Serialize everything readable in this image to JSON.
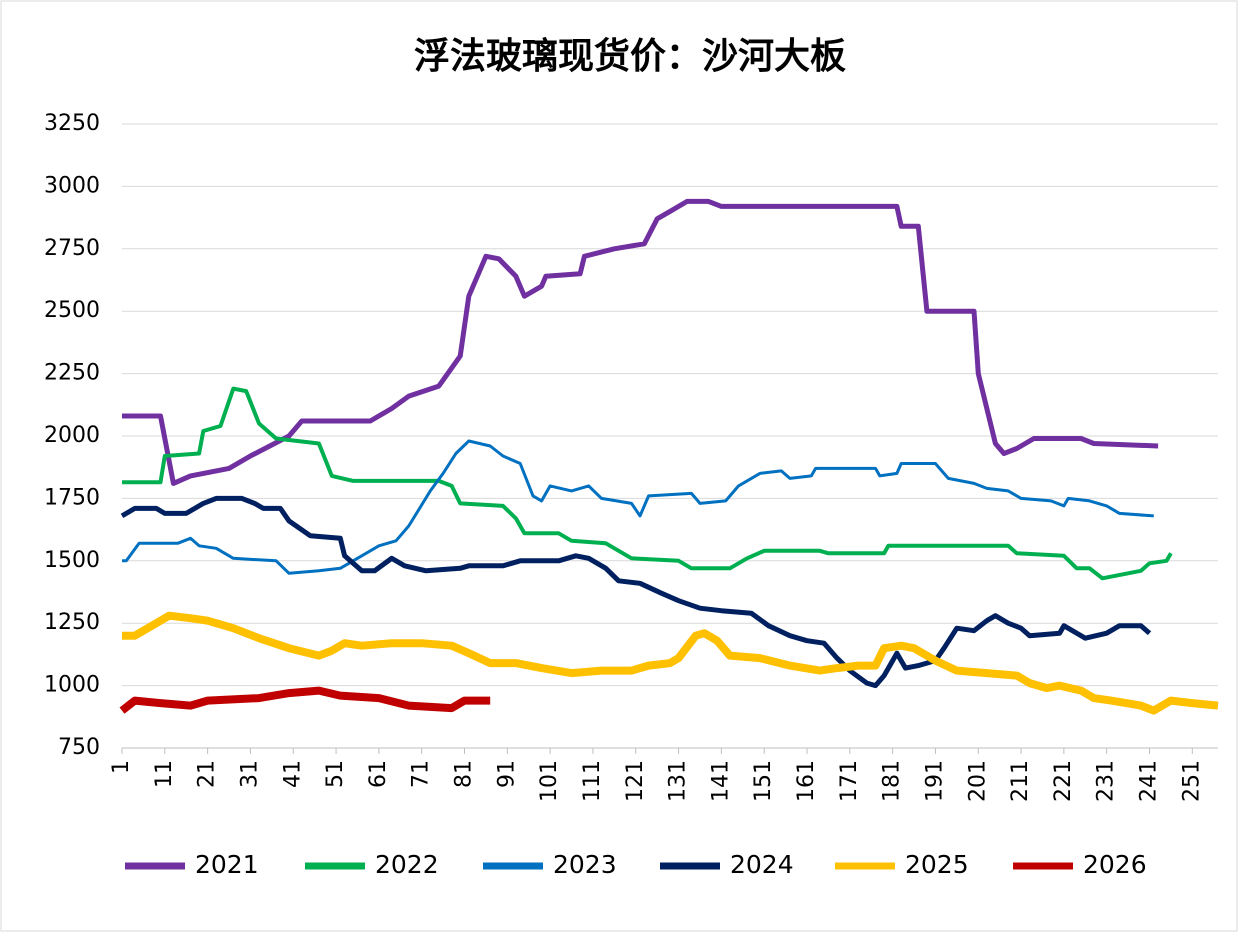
{
  "chart_data": {
    "type": "line",
    "title": "浮法玻璃现货价：沙河大板",
    "xlim": [
      1,
      257
    ],
    "xticks": [
      1,
      11,
      21,
      31,
      41,
      51,
      61,
      71,
      81,
      91,
      101,
      111,
      121,
      131,
      141,
      151,
      161,
      171,
      181,
      191,
      201,
      211,
      221,
      231,
      241,
      251
    ],
    "ylim": [
      750,
      3250
    ],
    "yticks": [
      750,
      1000,
      1250,
      1500,
      1750,
      2000,
      2250,
      2500,
      2750,
      3000,
      3250
    ],
    "grid": true,
    "legend": "bottom",
    "series": [
      {
        "name": "2021",
        "color": "#7030a0",
        "x": [
          1,
          10,
          13,
          17,
          26,
          31,
          40,
          43,
          59,
          64,
          68,
          75,
          80,
          82,
          86,
          89,
          93,
          95,
          99,
          100,
          108,
          109,
          116,
          123,
          126,
          129,
          133,
          138,
          141,
          182,
          183,
          187,
          189,
          200,
          201,
          205,
          207,
          210,
          214,
          225,
          228,
          243
        ],
        "values": [
          2080,
          2080,
          1810,
          1840,
          1870,
          1920,
          2000,
          2060,
          2060,
          2110,
          2160,
          2200,
          2320,
          2560,
          2720,
          2710,
          2640,
          2560,
          2600,
          2640,
          2650,
          2720,
          2750,
          2770,
          2870,
          2900,
          2940,
          2940,
          2920,
          2920,
          2840,
          2840,
          2500,
          2500,
          2250,
          1970,
          1930,
          1950,
          1990,
          1990,
          1970,
          1960
        ]
      },
      {
        "name": "2022",
        "color": "#00b050",
        "x": [
          1,
          10,
          11,
          19,
          20,
          24,
          27,
          30,
          33,
          37,
          47,
          50,
          55,
          75,
          78,
          80,
          90,
          93,
          95,
          103,
          106,
          114,
          120,
          131,
          134,
          143,
          147,
          151,
          164,
          166,
          179,
          180,
          208,
          210,
          221,
          224,
          227,
          230,
          233,
          239,
          241,
          245,
          246
        ],
        "values": [
          1815,
          1815,
          1920,
          1930,
          2020,
          2040,
          2190,
          2180,
          2050,
          1990,
          1970,
          1840,
          1820,
          1820,
          1800,
          1730,
          1720,
          1670,
          1610,
          1610,
          1580,
          1570,
          1510,
          1500,
          1470,
          1470,
          1510,
          1540,
          1540,
          1530,
          1530,
          1560,
          1560,
          1530,
          1520,
          1470,
          1470,
          1430,
          1440,
          1460,
          1490,
          1500,
          1530
        ]
      },
      {
        "name": "2023",
        "color": "#0070c0",
        "x": [
          1,
          2,
          5,
          14,
          17,
          19,
          23,
          27,
          37,
          40,
          47,
          52,
          57,
          61,
          65,
          68,
          73,
          76,
          79,
          82,
          87,
          90,
          94,
          97,
          99,
          101,
          106,
          110,
          113,
          120,
          122,
          124,
          134,
          136,
          142,
          145,
          150,
          155,
          157,
          162,
          163,
          177,
          178,
          182,
          183,
          191,
          194,
          200,
          203,
          208,
          211,
          218,
          221,
          222,
          227,
          231,
          234,
          242
        ],
        "values": [
          1500,
          1500,
          1570,
          1570,
          1590,
          1560,
          1550,
          1510,
          1500,
          1450,
          1460,
          1470,
          1520,
          1560,
          1580,
          1640,
          1780,
          1850,
          1930,
          1980,
          1960,
          1920,
          1890,
          1760,
          1740,
          1800,
          1780,
          1800,
          1750,
          1730,
          1680,
          1760,
          1770,
          1730,
          1740,
          1800,
          1850,
          1860,
          1830,
          1840,
          1870,
          1870,
          1840,
          1850,
          1890,
          1890,
          1830,
          1810,
          1790,
          1780,
          1750,
          1740,
          1720,
          1750,
          1740,
          1720,
          1690,
          1680
        ]
      },
      {
        "name": "2024",
        "color": "#002060",
        "x": [
          1,
          4,
          9,
          11,
          16,
          20,
          23,
          29,
          32,
          34,
          38,
          40,
          45,
          52,
          53,
          57,
          60,
          64,
          67,
          72,
          80,
          82,
          90,
          94,
          103,
          107,
          110,
          114,
          117,
          122,
          127,
          131,
          136,
          141,
          148,
          152,
          157,
          161,
          165,
          168,
          171,
          175,
          177,
          179,
          182,
          184,
          187,
          191,
          193,
          196,
          200,
          203,
          205,
          208,
          211,
          213,
          220,
          221,
          226,
          231,
          234,
          239,
          241
        ],
        "values": [
          1680,
          1710,
          1710,
          1690,
          1690,
          1730,
          1750,
          1750,
          1730,
          1710,
          1710,
          1660,
          1600,
          1590,
          1520,
          1460,
          1460,
          1510,
          1480,
          1460,
          1470,
          1480,
          1480,
          1500,
          1500,
          1520,
          1510,
          1470,
          1420,
          1410,
          1370,
          1340,
          1310,
          1300,
          1290,
          1240,
          1200,
          1180,
          1170,
          1110,
          1060,
          1010,
          1000,
          1040,
          1130,
          1070,
          1080,
          1100,
          1150,
          1230,
          1220,
          1260,
          1280,
          1250,
          1230,
          1200,
          1210,
          1240,
          1190,
          1210,
          1240,
          1240,
          1210
        ]
      },
      {
        "name": "2025",
        "color": "#ffc000",
        "x": [
          1,
          4,
          8,
          12,
          17,
          21,
          27,
          33,
          40,
          47,
          50,
          53,
          57,
          64,
          71,
          78,
          82,
          87,
          93,
          99,
          106,
          113,
          120,
          124,
          129,
          131,
          135,
          137,
          140,
          143,
          150,
          157,
          164,
          168,
          173,
          177,
          179,
          183,
          186,
          191,
          196,
          203,
          210,
          213,
          217,
          220,
          225,
          228,
          232,
          239,
          242,
          246,
          251,
          257
        ],
        "values": [
          1200,
          1200,
          1240,
          1280,
          1270,
          1260,
          1230,
          1190,
          1150,
          1120,
          1140,
          1170,
          1160,
          1170,
          1170,
          1160,
          1130,
          1090,
          1090,
          1070,
          1050,
          1060,
          1060,
          1080,
          1090,
          1110,
          1200,
          1210,
          1180,
          1120,
          1110,
          1080,
          1060,
          1070,
          1080,
          1080,
          1150,
          1160,
          1150,
          1100,
          1060,
          1050,
          1040,
          1010,
          990,
          1000,
          980,
          950,
          940,
          920,
          900,
          940,
          930,
          920
        ]
      },
      {
        "name": "2026",
        "color": "#c00000",
        "x": [
          1,
          4,
          10,
          17,
          21,
          33,
          40,
          47,
          52,
          61,
          68,
          78,
          81,
          87
        ],
        "values": [
          900,
          940,
          930,
          920,
          940,
          950,
          970,
          980,
          960,
          950,
          920,
          910,
          940,
          940
        ]
      }
    ]
  }
}
